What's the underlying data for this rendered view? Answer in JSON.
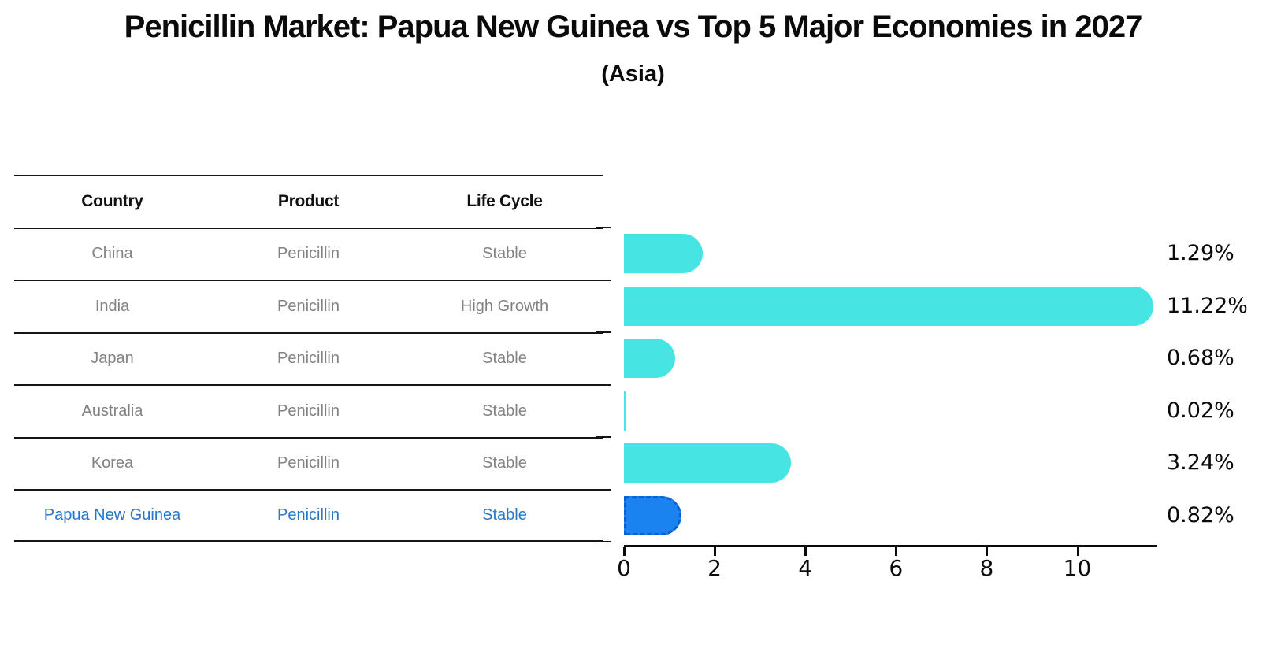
{
  "header": {
    "title": "Penicillin Market: Papua New Guinea vs Top 5 Major Economies in 2027",
    "subtitle": "(Asia)"
  },
  "table": {
    "columns": [
      "Country",
      "Product",
      "Life Cycle"
    ],
    "rows": [
      {
        "country": "China",
        "product": "Penicillin",
        "life_cycle": "Stable",
        "highlighted": false
      },
      {
        "country": "India",
        "product": "Penicillin",
        "life_cycle": "High Growth",
        "highlighted": false
      },
      {
        "country": "Japan",
        "product": "Penicillin",
        "life_cycle": "Stable",
        "highlighted": false
      },
      {
        "country": "Australia",
        "product": "Penicillin",
        "life_cycle": "Stable",
        "highlighted": false
      },
      {
        "country": "Korea",
        "product": "Penicillin",
        "life_cycle": "Stable",
        "highlighted": false
      },
      {
        "country": "Papua New Guinea",
        "product": "Penicillin",
        "life_cycle": "Stable",
        "highlighted": true
      }
    ],
    "highlight_text_color": "#2878C8"
  },
  "chart_data": {
    "type": "bar",
    "orientation": "horizontal",
    "title": "Penicillin Market: Papua New Guinea vs Top 5 Major Economies in 2027",
    "subtitle": "(Asia)",
    "categories": [
      "China",
      "India",
      "Japan",
      "Australia",
      "Korea",
      "Papua New Guinea"
    ],
    "values": [
      1.29,
      11.22,
      0.68,
      0.02,
      3.24,
      0.82
    ],
    "value_labels": [
      "1.29%",
      "11.22%",
      "0.68%",
      "0.02%",
      "3.24%",
      "0.82%"
    ],
    "xlabel": "",
    "ylabel": "",
    "xticks": [
      0,
      2,
      4,
      6,
      8,
      10
    ],
    "xlim": [
      0,
      11.76
    ],
    "grid": false,
    "legend": false,
    "bar_color": "#47E4E4",
    "highlight_index": 5,
    "highlight_bar_color": "#1A83F0",
    "highlight_border_color": "#0D5FD6"
  }
}
